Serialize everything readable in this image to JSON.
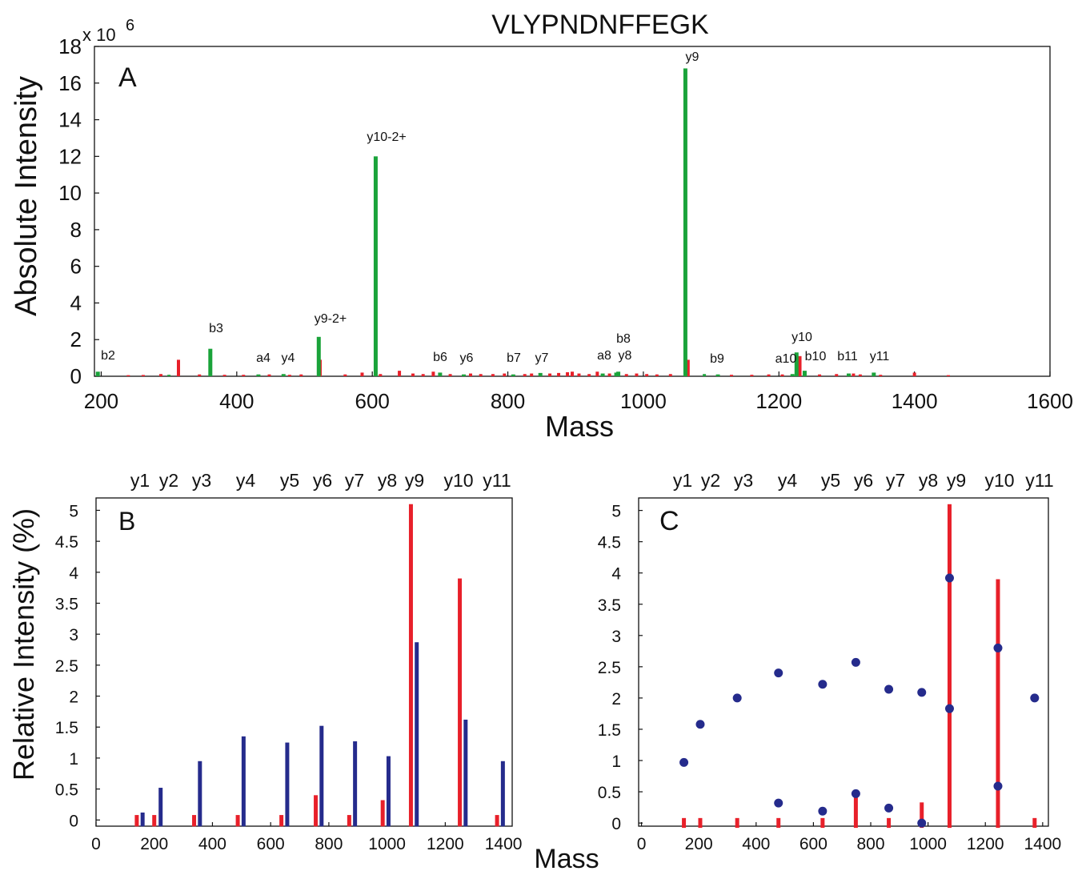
{
  "figure": {
    "title": "VLYPNDNFFEGK",
    "shared_xlabel": "Mass",
    "shared_ylabel": "Relative Intensity (%)"
  },
  "colors": {
    "red": "#e8202a",
    "green": "#1aa33a",
    "blue": "#252b8c",
    "axis": "#111111"
  },
  "chart_data": [
    {
      "panel": "A",
      "type": "bar",
      "title": "VLYPNDNFFEGK",
      "xlabel": "Mass",
      "ylabel": "Absolute Intensity",
      "y_multiplier": "x 10",
      "y_multiplier_exp": "6",
      "xlim": [
        190,
        1600
      ],
      "ylim": [
        0,
        18
      ],
      "xticks": [
        200,
        400,
        600,
        800,
        1000,
        1200,
        1400,
        1600
      ],
      "yticks": [
        0,
        2,
        4,
        6,
        8,
        10,
        12,
        14,
        16,
        18
      ],
      "annotated_peaks": [
        {
          "label": "b2",
          "x": 195,
          "y": 0.25,
          "color": "green"
        },
        {
          "label": "b3",
          "x": 361,
          "y": 1.5,
          "color": "green"
        },
        {
          "label": "a4",
          "x": 432,
          "y": 0.1,
          "color": "green"
        },
        {
          "label": "y4",
          "x": 469,
          "y": 0.12,
          "color": "green"
        },
        {
          "label": "y9-2+",
          "x": 521,
          "y": 2.15,
          "color": "green"
        },
        {
          "label": "y10-2+",
          "x": 605,
          "y": 12.0,
          "color": "green"
        },
        {
          "label": "b6",
          "x": 700,
          "y": 0.2,
          "color": "green"
        },
        {
          "label": "y6",
          "x": 735,
          "y": 0.1,
          "color": "green"
        },
        {
          "label": "b7",
          "x": 808,
          "y": 0.1,
          "color": "green"
        },
        {
          "label": "y7",
          "x": 848,
          "y": 0.18,
          "color": "green"
        },
        {
          "label": "a8",
          "x": 940,
          "y": 0.15,
          "color": "green"
        },
        {
          "label": "b8",
          "x": 963,
          "y": 0.25,
          "color": "green"
        },
        {
          "label": "y8",
          "x": 960,
          "y": 0.2,
          "color": "green"
        },
        {
          "label": "y9",
          "x": 1062,
          "y": 16.8,
          "color": "green"
        },
        {
          "label": "b9",
          "x": 1110,
          "y": 0.1,
          "color": "green"
        },
        {
          "label": "a10",
          "x": 1220,
          "y": 0.12,
          "color": "green"
        },
        {
          "label": "y10",
          "x": 1226,
          "y": 1.3,
          "color": "green"
        },
        {
          "label": "b10",
          "x": 1238,
          "y": 0.3,
          "color": "green"
        },
        {
          "label": "b11",
          "x": 1303,
          "y": 0.15,
          "color": "green"
        },
        {
          "label": "y11",
          "x": 1340,
          "y": 0.2,
          "color": "green"
        }
      ],
      "other_peaks": [
        {
          "x": 314,
          "y": 0.9,
          "color": "red"
        },
        {
          "x": 523,
          "y": 0.9,
          "color": "red"
        },
        {
          "x": 640,
          "y": 0.3,
          "color": "red"
        },
        {
          "x": 690,
          "y": 0.25,
          "color": "red"
        },
        {
          "x": 1066,
          "y": 0.9,
          "color": "red"
        },
        {
          "x": 1231,
          "y": 1.1,
          "color": "red"
        },
        {
          "x": 1400,
          "y": 0.2,
          "color": "red"
        },
        {
          "x": 240,
          "y": 0.06,
          "color": "red"
        },
        {
          "x": 262,
          "y": 0.07,
          "color": "red"
        },
        {
          "x": 288,
          "y": 0.12,
          "color": "red"
        },
        {
          "x": 300,
          "y": 0.08,
          "color": "green"
        },
        {
          "x": 345,
          "y": 0.1,
          "color": "red"
        },
        {
          "x": 382,
          "y": 0.08,
          "color": "red"
        },
        {
          "x": 410,
          "y": 0.08,
          "color": "red"
        },
        {
          "x": 448,
          "y": 0.1,
          "color": "red"
        },
        {
          "x": 478,
          "y": 0.08,
          "color": "red"
        },
        {
          "x": 495,
          "y": 0.1,
          "color": "red"
        },
        {
          "x": 560,
          "y": 0.1,
          "color": "red"
        },
        {
          "x": 585,
          "y": 0.2,
          "color": "red"
        },
        {
          "x": 612,
          "y": 0.12,
          "color": "red"
        },
        {
          "x": 660,
          "y": 0.15,
          "color": "red"
        },
        {
          "x": 675,
          "y": 0.12,
          "color": "red"
        },
        {
          "x": 715,
          "y": 0.12,
          "color": "red"
        },
        {
          "x": 745,
          "y": 0.15,
          "color": "red"
        },
        {
          "x": 760,
          "y": 0.12,
          "color": "red"
        },
        {
          "x": 778,
          "y": 0.12,
          "color": "red"
        },
        {
          "x": 795,
          "y": 0.15,
          "color": "red"
        },
        {
          "x": 825,
          "y": 0.12,
          "color": "red"
        },
        {
          "x": 835,
          "y": 0.15,
          "color": "red"
        },
        {
          "x": 862,
          "y": 0.15,
          "color": "red"
        },
        {
          "x": 875,
          "y": 0.18,
          "color": "red"
        },
        {
          "x": 888,
          "y": 0.22,
          "color": "red"
        },
        {
          "x": 895,
          "y": 0.25,
          "color": "red"
        },
        {
          "x": 905,
          "y": 0.15,
          "color": "red"
        },
        {
          "x": 920,
          "y": 0.12,
          "color": "red"
        },
        {
          "x": 932,
          "y": 0.25,
          "color": "red"
        },
        {
          "x": 950,
          "y": 0.15,
          "color": "red"
        },
        {
          "x": 975,
          "y": 0.12,
          "color": "red"
        },
        {
          "x": 990,
          "y": 0.15,
          "color": "red"
        },
        {
          "x": 1005,
          "y": 0.12,
          "color": "red"
        },
        {
          "x": 1020,
          "y": 0.1,
          "color": "red"
        },
        {
          "x": 1040,
          "y": 0.12,
          "color": "red"
        },
        {
          "x": 1090,
          "y": 0.12,
          "color": "green"
        },
        {
          "x": 1130,
          "y": 0.08,
          "color": "red"
        },
        {
          "x": 1160,
          "y": 0.08,
          "color": "red"
        },
        {
          "x": 1185,
          "y": 0.1,
          "color": "red"
        },
        {
          "x": 1205,
          "y": 0.1,
          "color": "red"
        },
        {
          "x": 1260,
          "y": 0.1,
          "color": "red"
        },
        {
          "x": 1285,
          "y": 0.12,
          "color": "red"
        },
        {
          "x": 1310,
          "y": 0.15,
          "color": "red"
        },
        {
          "x": 1320,
          "y": 0.1,
          "color": "red"
        },
        {
          "x": 1350,
          "y": 0.08,
          "color": "red"
        },
        {
          "x": 1450,
          "y": 0.06,
          "color": "red"
        }
      ]
    },
    {
      "panel": "B",
      "type": "bar",
      "xlabel": "Mass",
      "ylabel": "Relative Intensity (%)",
      "xlim": [
        0,
        1430
      ],
      "ylim": [
        -0.1,
        5.2
      ],
      "xticks": [
        0,
        200,
        400,
        600,
        800,
        1000,
        1200,
        1400
      ],
      "yticks": [
        0,
        0.5,
        1,
        1.5,
        2,
        2.5,
        3,
        3.5,
        4,
        4.5,
        5
      ],
      "top_labels": [
        {
          "label": "y1",
          "x": 147
        },
        {
          "label": "y2",
          "x": 204
        },
        {
          "label": "y3",
          "x": 347
        },
        {
          "label": "y4",
          "x": 500
        },
        {
          "label": "y5",
          "x": 656
        },
        {
          "label": "y6",
          "x": 770
        },
        {
          "label": "y7",
          "x": 883
        },
        {
          "label": "y8",
          "x": 997
        },
        {
          "label": "y9",
          "x": 1089
        },
        {
          "label": "y10",
          "x": 1255
        },
        {
          "label": "y11",
          "x": 1383
        }
      ],
      "series": [
        {
          "name": "",
          "color": "red",
          "x": [
            140,
            200,
            337,
            487,
            637,
            755,
            870,
            985,
            1082,
            1250,
            1378
          ],
          "values": [
            0.08,
            0.08,
            0.08,
            0.08,
            0.08,
            0.4,
            0.08,
            0.32,
            5.1,
            3.9,
            0.08
          ]
        },
        {
          "name": "",
          "color": "blue",
          "x": [
            160,
            222,
            357,
            507,
            657,
            775,
            890,
            1005,
            1102,
            1270,
            1398
          ],
          "values": [
            0.12,
            0.52,
            0.95,
            1.35,
            1.25,
            1.52,
            1.27,
            1.03,
            2.87,
            1.62,
            0.95
          ]
        }
      ]
    },
    {
      "panel": "C",
      "type": "scatter",
      "xlabel": "Mass",
      "ylabel": "",
      "xlim": [
        -10,
        1420
      ],
      "ylim": [
        -0.05,
        5.2
      ],
      "xticks": [
        0,
        200,
        400,
        600,
        800,
        1000,
        1200,
        1400
      ],
      "yticks": [
        0,
        0.5,
        1,
        1.5,
        2,
        2.5,
        3,
        3.5,
        4,
        4.5,
        5
      ],
      "top_labels": [
        {
          "label": "y1",
          "x": 147
        },
        {
          "label": "y2",
          "x": 204
        },
        {
          "label": "y3",
          "x": 347
        },
        {
          "label": "y4",
          "x": 500
        },
        {
          "label": "y5",
          "x": 656
        },
        {
          "label": "y6",
          "x": 770
        },
        {
          "label": "y7",
          "x": 883
        },
        {
          "label": "y8",
          "x": 997
        },
        {
          "label": "y9",
          "x": 1089
        },
        {
          "label": "y10",
          "x": 1255
        },
        {
          "label": "y11",
          "x": 1383
        }
      ],
      "sticks": {
        "color": "red",
        "x": [
          148,
          205,
          334,
          478,
          632,
          748,
          863,
          978,
          1075,
          1244,
          1372
        ],
        "values": [
          0.08,
          0.08,
          0.08,
          0.08,
          0.08,
          0.45,
          0.08,
          0.33,
          5.1,
          3.9,
          0.08
        ]
      },
      "points": {
        "color": "blue",
        "x": [
          148,
          205,
          334,
          478,
          632,
          748,
          863,
          978,
          1075,
          1075,
          1244,
          1244,
          1372,
          478,
          632,
          748,
          863,
          978
        ],
        "values": [
          0.97,
          1.58,
          2.0,
          2.4,
          2.22,
          2.57,
          2.14,
          2.09,
          3.92,
          1.83,
          2.8,
          0.59,
          2.0,
          0.32,
          0.19,
          0.47,
          0.24,
          0.0
        ]
      }
    }
  ]
}
